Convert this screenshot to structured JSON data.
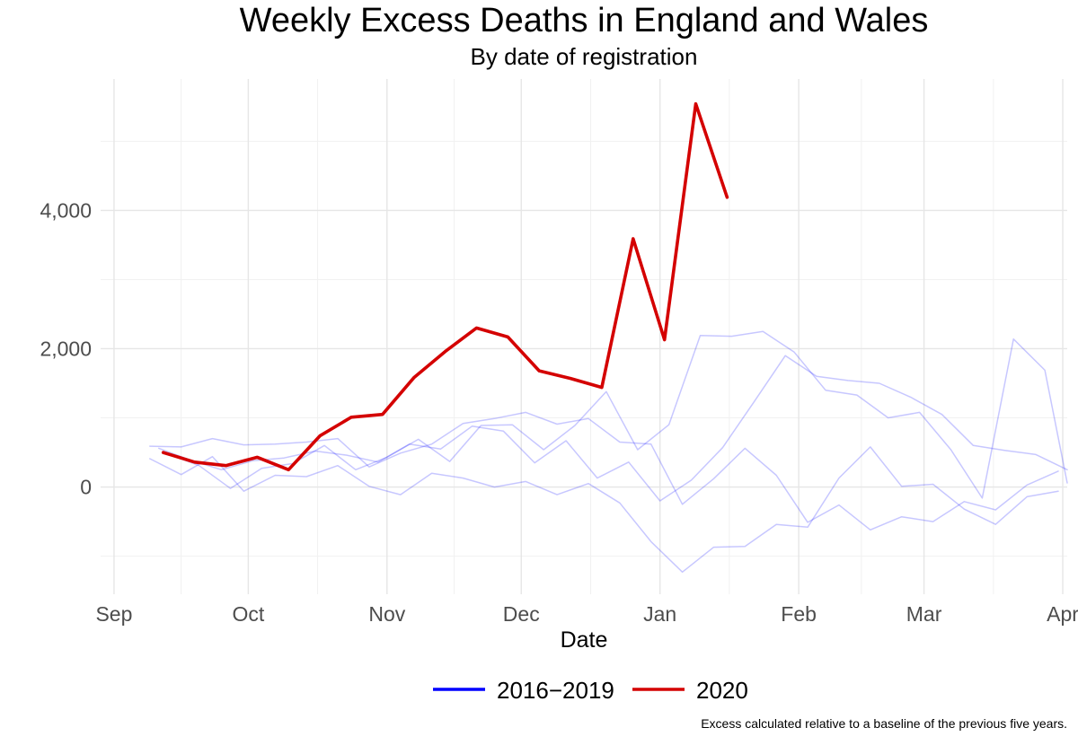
{
  "chart_data": {
    "type": "line",
    "title": "Weekly Excess Deaths in England and Wales",
    "subtitle": "By date of registration",
    "xlabel": "Date",
    "ylabel": "",
    "caption": "Excess calculated relative to a baseline of the previous five years.",
    "x_ticks": [
      "Sep",
      "Oct",
      "Nov",
      "Dec",
      "Jan",
      "Feb",
      "Mar",
      "Apr"
    ],
    "y_ticks": [
      0,
      2000,
      4000
    ],
    "y_tick_labels": [
      "0",
      "2,000",
      "4,000"
    ],
    "ylim": [
      -1550,
      5900
    ],
    "xlim_days": [
      -3,
      213
    ],
    "x_unit": "days since 1 Sep",
    "legend": [
      {
        "label": "2016−2019",
        "color": "#0000ff"
      },
      {
        "label": "2020",
        "color": "#d40000"
      }
    ],
    "legend_position": "bottom",
    "series": [
      {
        "name": "2016−2019",
        "color": "#0000ff",
        "opacity": 0.22,
        "x": [
          8,
          15,
          22,
          29,
          36,
          43,
          50,
          57,
          64,
          71,
          78,
          85,
          92,
          99,
          106,
          113,
          120,
          127,
          134,
          141,
          148,
          155,
          162,
          169,
          176,
          183,
          190,
          197,
          204,
          211
        ],
        "values": [
          590,
          580,
          700,
          610,
          620,
          650,
          700,
          290,
          490,
          620,
          920,
          990,
          1080,
          910,
          990,
          650,
          620,
          -250,
          120,
          560,
          170,
          -510,
          -260,
          -620,
          -430,
          -500,
          -210,
          -330,
          30,
          230
        ]
      },
      {
        "name": "2016−2019",
        "color": "#0000ff",
        "opacity": 0.22,
        "x": [
          8,
          15,
          22,
          29,
          36,
          43,
          50,
          57,
          64,
          71,
          78,
          85,
          92,
          99,
          106,
          113,
          120,
          127,
          134,
          141,
          148,
          155,
          162,
          169,
          176,
          183,
          190,
          197,
          204,
          211
        ],
        "values": [
          410,
          180,
          440,
          -60,
          170,
          150,
          310,
          10,
          -110,
          200,
          130,
          0,
          80,
          -110,
          50,
          -230,
          -790,
          -1230,
          -870,
          -860,
          -540,
          -580,
          130,
          580,
          10,
          40,
          -320,
          -540,
          -140,
          -60
        ]
      },
      {
        "name": "2016−2019",
        "color": "#0000ff",
        "opacity": 0.22,
        "x": [
          10,
          17,
          24,
          31,
          38,
          45,
          52,
          59,
          66,
          73,
          80,
          87,
          94,
          101,
          108,
          115,
          122,
          129,
          136,
          143,
          150,
          157,
          164,
          171,
          178,
          185,
          192,
          199,
          206,
          213
        ],
        "values": [
          560,
          390,
          250,
          380,
          420,
          520,
          460,
          360,
          620,
          550,
          880,
          810,
          350,
          670,
          130,
          360,
          -200,
          100,
          570,
          1230,
          1900,
          1600,
          1540,
          1500,
          1300,
          1050,
          600,
          530,
          470,
          250
        ]
      },
      {
        "name": "2016−2019",
        "color": "#0000ff",
        "opacity": 0.22,
        "x": [
          12,
          19,
          26,
          33,
          40,
          47,
          54,
          61,
          68,
          75,
          82,
          89,
          96,
          103,
          110,
          117,
          124,
          131,
          138,
          145,
          152,
          159,
          166,
          173,
          180,
          187,
          194,
          201,
          208,
          213
        ],
        "values": [
          480,
          310,
          -20,
          270,
          340,
          600,
          250,
          430,
          690,
          370,
          890,
          900,
          540,
          890,
          1380,
          540,
          900,
          2190,
          2180,
          2250,
          1950,
          1400,
          1330,
          1000,
          1080,
          540,
          -160,
          2140,
          1690,
          60
        ]
      },
      {
        "name": "2020",
        "color": "#d40000",
        "opacity": 1,
        "emphasis": true,
        "x": [
          11,
          18,
          25,
          32,
          39,
          46,
          53,
          60,
          67,
          74,
          81,
          88,
          95,
          102,
          109,
          116,
          123,
          130,
          137
        ],
        "values": [
          500,
          360,
          310,
          430,
          250,
          740,
          1010,
          1050,
          1580,
          1960,
          2300,
          2170,
          1680,
          1570,
          1440,
          3590,
          2130,
          5540,
          4190
        ]
      }
    ]
  }
}
